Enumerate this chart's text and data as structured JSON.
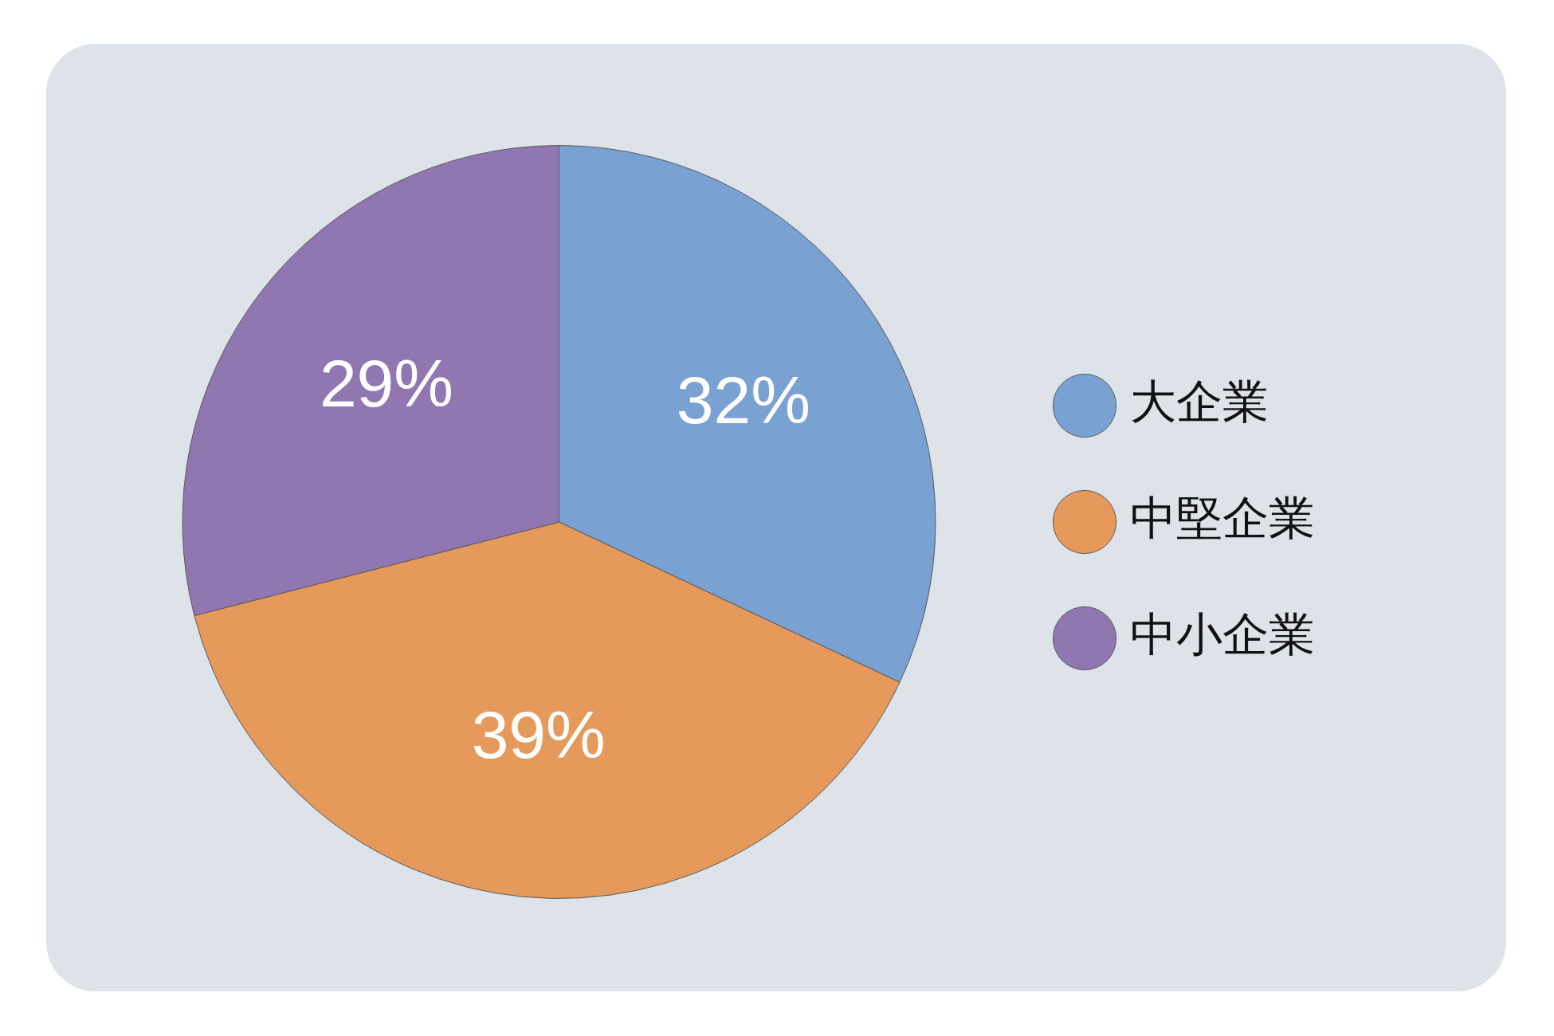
{
  "chart_data": {
    "type": "pie",
    "categories": [
      "大企業",
      "中堅企業",
      "中小企業"
    ],
    "values": [
      32,
      39,
      29
    ],
    "colors": [
      "#79a1d2",
      "#e5995b",
      "#9077b2"
    ],
    "value_labels": [
      "32%",
      "39%",
      "29%"
    ],
    "legend": "right"
  }
}
